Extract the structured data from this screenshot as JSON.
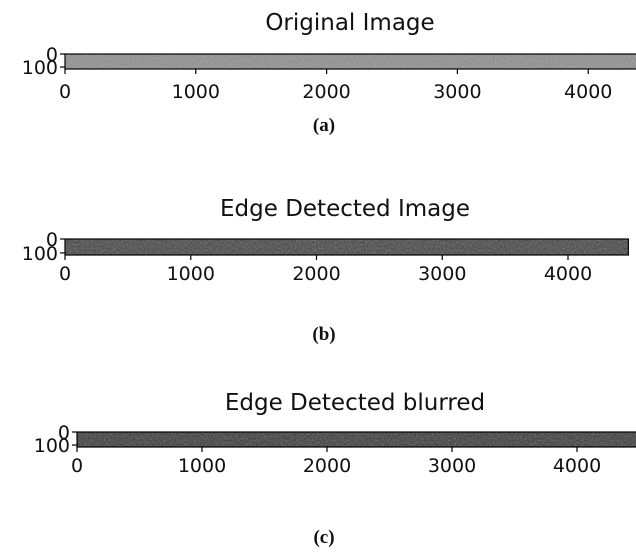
{
  "chart_data": [
    {
      "type": "image",
      "title": "Original Image",
      "caption": "(a)",
      "tone": "#8a8a8a",
      "xlim": [
        0,
        4480
      ],
      "xticks": [
        0,
        1000,
        2000,
        3000,
        4000
      ],
      "ylim": [
        0,
        115
      ],
      "yticks": [
        0,
        100
      ],
      "y_inverted": true
    },
    {
      "type": "image",
      "title": "Edge Detected Image",
      "caption": "(b)",
      "tone": "#3a3a3a",
      "xlim": [
        0,
        4480
      ],
      "xticks": [
        0,
        1000,
        2000,
        3000,
        4000
      ],
      "ylim": [
        0,
        115
      ],
      "yticks": [
        0,
        100
      ],
      "y_inverted": true
    },
    {
      "type": "image",
      "title": "Edge Detected blurred",
      "caption": "(c)",
      "tone": "#2e2e2e",
      "xlim": [
        0,
        4480
      ],
      "xticks": [
        0,
        1000,
        2000,
        3000,
        4000
      ],
      "ylim": [
        0,
        115
      ],
      "yticks": [
        0,
        100
      ],
      "y_inverted": true
    }
  ]
}
